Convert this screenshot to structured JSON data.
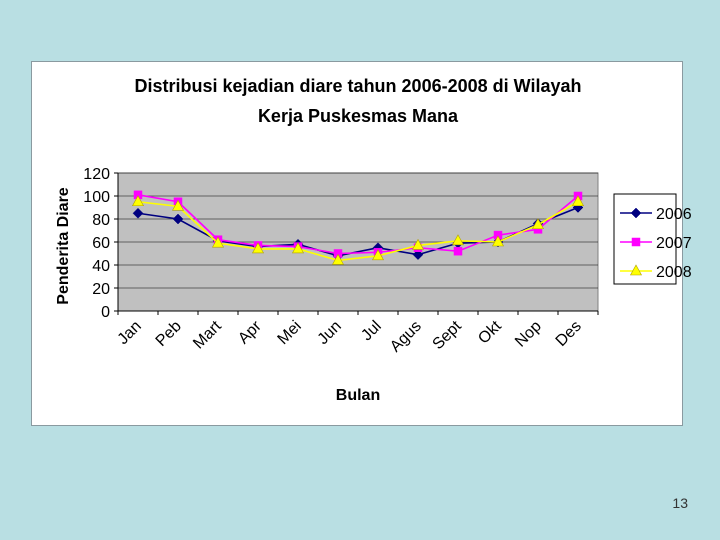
{
  "slide": {
    "page_number": "13"
  },
  "chart_data": {
    "type": "line",
    "title_lines": [
      "Distribusi kejadian diare tahun 2006-2008 di Wilayah",
      "Kerja Puskesmas Mana"
    ],
    "xlabel": "Bulan",
    "ylabel": "Penderita Diare",
    "categories": [
      "Jan",
      "Peb",
      "Mart",
      "Apr",
      "Mei",
      "Jun",
      "Jul",
      "Agus",
      "Sept",
      "Okt",
      "Nop",
      "Des"
    ],
    "ylim": [
      0,
      120
    ],
    "yticks": [
      0,
      20,
      40,
      60,
      80,
      100,
      120
    ],
    "grid": true,
    "legend_position": "right",
    "plot_background": "#c0c0c0",
    "series": [
      {
        "name": "2006",
        "color": "#000080",
        "marker": "diamond",
        "values": [
          85,
          80,
          61,
          56,
          58,
          48,
          55,
          49,
          59,
          60,
          76,
          90
        ]
      },
      {
        "name": "2007",
        "color": "#ff00ff",
        "marker": "square",
        "values": [
          101,
          95,
          62,
          57,
          56,
          50,
          51,
          55,
          52,
          66,
          71,
          100
        ]
      },
      {
        "name": "2008",
        "color": "#ffff00",
        "marker": "triangle",
        "values": [
          95,
          91,
          59,
          54,
          54,
          44,
          48,
          57,
          61,
          60,
          75,
          95
        ]
      }
    ]
  }
}
